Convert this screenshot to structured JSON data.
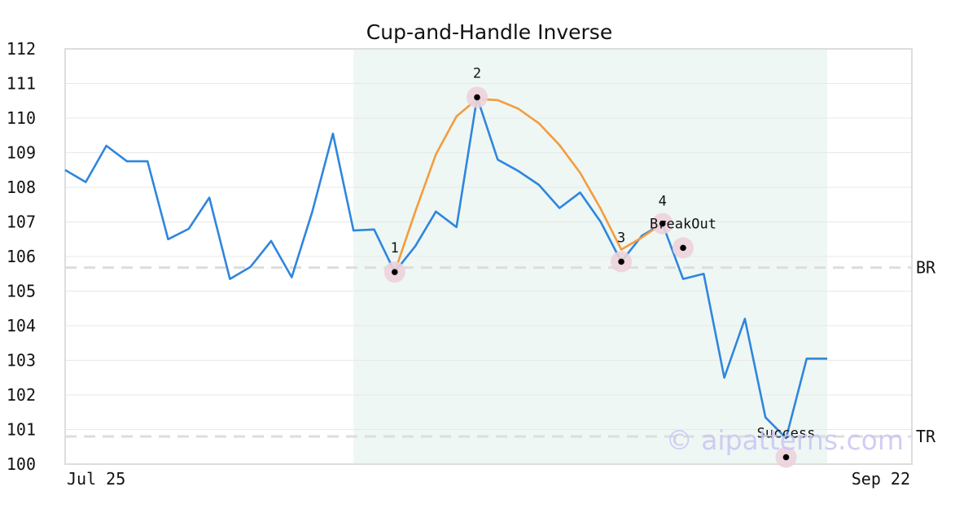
{
  "chart_data": {
    "type": "line",
    "title": "Cup-and-Handle Inverse",
    "xlabel": "",
    "ylabel": "",
    "ylim": [
      100,
      112
    ],
    "y_ticks": [
      100,
      101,
      102,
      103,
      104,
      105,
      106,
      107,
      108,
      109,
      110,
      111,
      112
    ],
    "x_tick_labels": [
      "Jul 25",
      "Sep 22"
    ],
    "grid": "horizontal",
    "colors": {
      "price": "#2e86de",
      "cup": "#f39c3f",
      "region": "#eef7f3",
      "marker_halo": "#ecd2dc",
      "level_line": "#dddddd",
      "frame": "#dddddd",
      "gridline": "#e8e8e8"
    },
    "series": [
      {
        "values": [
          108.5,
          108.15,
          109.2,
          108.75,
          108.75,
          106.5,
          106.8,
          107.7,
          105.35,
          105.7,
          106.45,
          105.4,
          107.3,
          109.55,
          106.75,
          106.78,
          105.55,
          106.3,
          107.3,
          106.85,
          110.6,
          108.8,
          108.47,
          108.07,
          107.4,
          107.85,
          107.0,
          105.85,
          106.6,
          106.95,
          105.35,
          105.5,
          102.5,
          104.2,
          101.35,
          100.75,
          103.05,
          103.05
        ]
      }
    ],
    "cup_curve": [
      [
        16,
        105.55
      ],
      [
        17,
        107.3
      ],
      [
        18,
        108.95
      ],
      [
        19,
        110.05
      ],
      [
        20,
        110.55
      ],
      [
        21,
        110.52
      ],
      [
        22,
        110.27
      ],
      [
        23,
        109.85
      ],
      [
        24,
        109.22
      ],
      [
        25,
        108.42
      ],
      [
        26,
        107.38
      ],
      [
        27,
        106.2
      ],
      [
        28,
        106.55
      ],
      [
        29,
        106.95
      ]
    ],
    "levels": [
      {
        "label": "BR",
        "value": 105.68
      },
      {
        "label": "TR",
        "value": 100.8
      }
    ],
    "highlight_region": {
      "x_start": 14,
      "x_end": 37
    },
    "markers": [
      {
        "label": "1",
        "x": 16,
        "y": 105.55
      },
      {
        "label": "2",
        "x": 20,
        "y": 110.6
      },
      {
        "label": "3",
        "x": 27,
        "y": 105.85
      },
      {
        "label": "4",
        "x": 29,
        "y": 106.95
      },
      {
        "label": "BreakOut",
        "x": 30,
        "y": 106.25
      },
      {
        "label": "Success",
        "x": 35,
        "y": 100.2
      }
    ],
    "watermark": "© aipatterns.com"
  }
}
